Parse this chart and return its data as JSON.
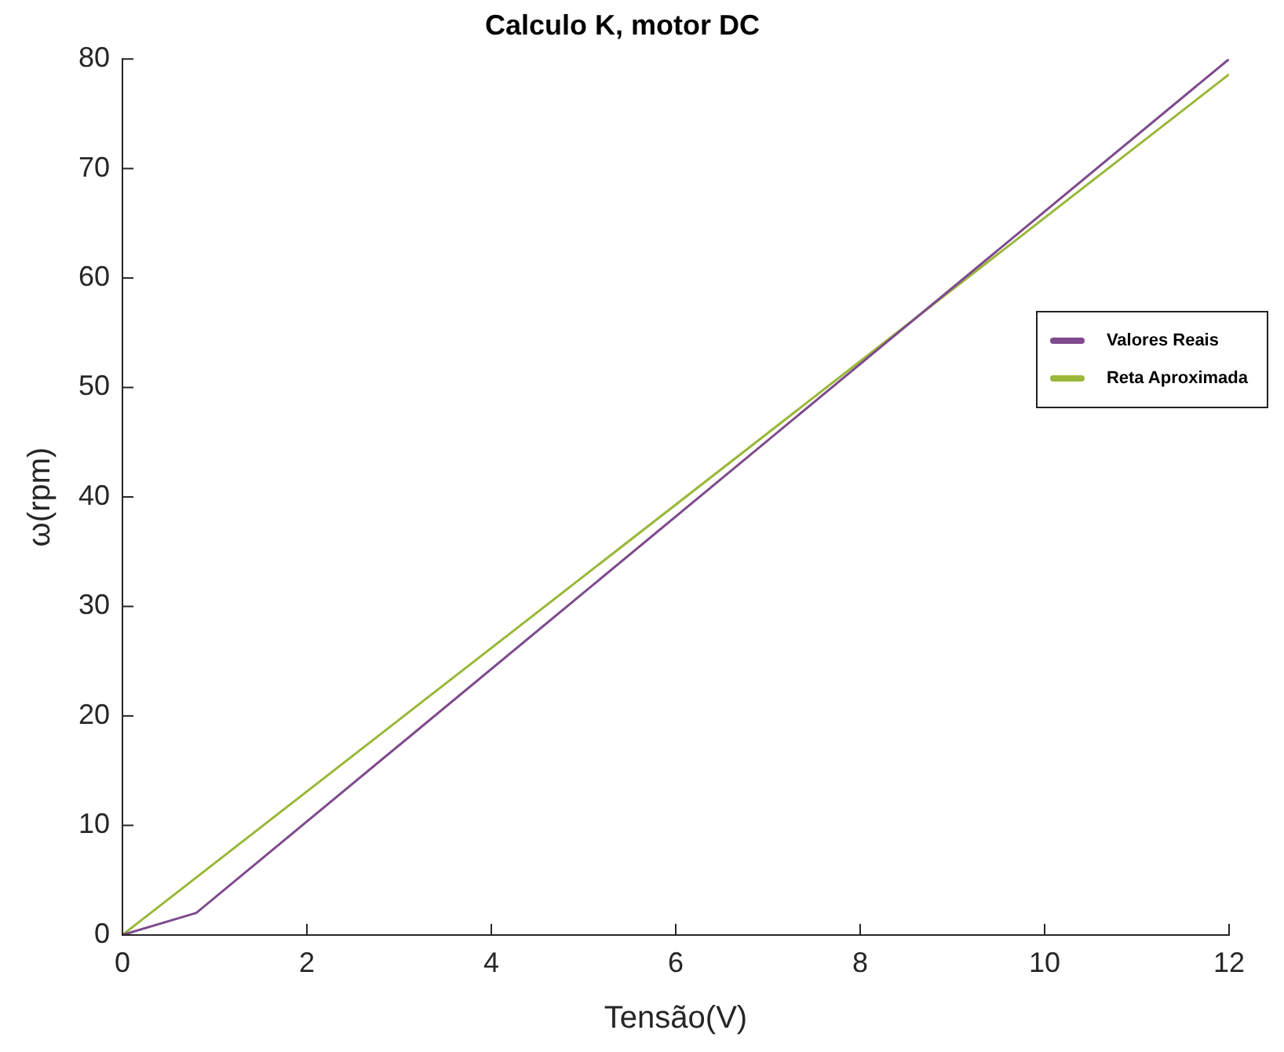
{
  "chart_data": {
    "type": "line",
    "title": "Calculo K, motor DC",
    "xlabel": "Tensão(V)",
    "ylabel": "ω(rpm)",
    "xlim": [
      0,
      12
    ],
    "xticks": [
      0,
      2,
      4,
      6,
      8,
      10,
      12
    ],
    "ylim": [
      0,
      80
    ],
    "yticks": [
      0,
      10,
      20,
      30,
      40,
      50,
      60,
      70,
      80
    ],
    "grid": false,
    "legend": "right",
    "marker": "none",
    "line_style": "solid",
    "series": [
      {
        "name": "Valores Reais",
        "color": "#7e4a8e",
        "x": [
          0,
          0.8,
          12
        ],
        "values": [
          0,
          2,
          80
        ]
      },
      {
        "name": "Reta Aproximada",
        "color": "#9ab83a",
        "x": [
          0,
          12
        ],
        "values": [
          0,
          78.6
        ]
      }
    ]
  }
}
